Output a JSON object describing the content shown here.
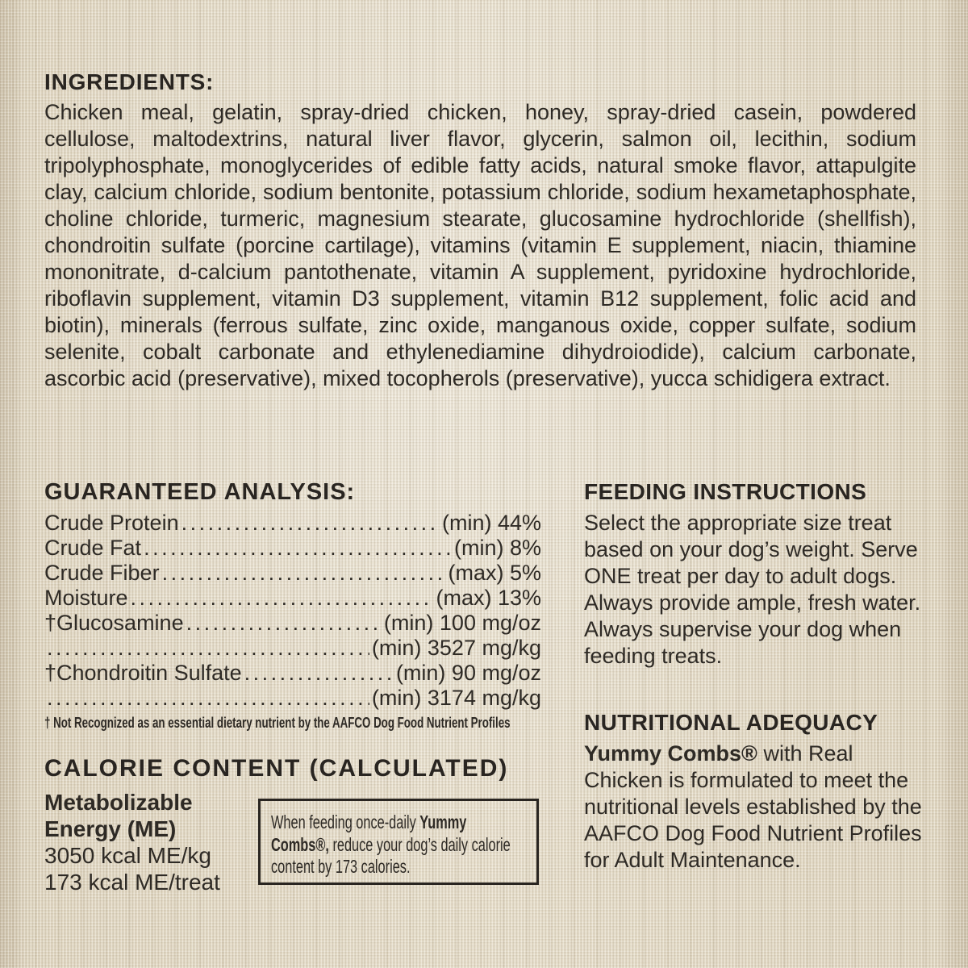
{
  "colors": {
    "background": "#e4dbc7",
    "text": "#2e2a25",
    "box_border": "#292521"
  },
  "ingredients": {
    "heading": "INGREDIENTS:",
    "text": "Chicken meal, gelatin, spray-dried chicken, honey, spray-dried casein, powdered cellulose, maltodextrins, natural liver flavor, glycerin, salmon oil, lecithin, sodium tripolyphosphate, monoglycerides of edible fatty acids, natural smoke flavor, attapulgite clay, calcium chloride, sodium bentonite, potassium chloride, sodium hexametaphosphate, choline chloride, turmeric, magnesium stearate, glucosamine hydrochloride (shellfish), chondroitin sulfate (porcine cartilage), vitamins (vitamin E supplement, niacin, thiamine mononitrate, d-calcium pantothenate, vitamin A supplement, pyridoxine hydrochloride, riboflavin supplement, vitamin D3 supplement, vitamin B12 supplement, folic acid and biotin), minerals (ferrous sulfate, zinc oxide, manganous oxide, copper sulfate, sodium selenite, cobalt carbonate and ethylenediamine dihydroiodide), calcium carbonate, ascorbic acid (preservative), mixed tocopherols (preservative), yucca schidigera extract."
  },
  "guaranteed_analysis": {
    "heading": "GUARANTEED ANALYSIS:",
    "rows": [
      {
        "label": "Crude Protein",
        "value": "(min) 44%"
      },
      {
        "label": "Crude Fat",
        "value": "(min) 8%"
      },
      {
        "label": "Crude Fiber",
        "value": "(max) 5%"
      },
      {
        "label": "Moisture",
        "value": "(max) 13%"
      },
      {
        "label": "†Glucosamine",
        "value": "(min) 100 mg/oz"
      },
      {
        "label": "",
        "value": "(min) 3527 mg/kg"
      },
      {
        "label": "†Chondroitin Sulfate",
        "value": "(min) 90 mg/oz"
      },
      {
        "label": "",
        "value": "(min) 3174 mg/kg"
      }
    ],
    "footnote": "† Not Recognized as an essential dietary nutrient by the AAFCO Dog Food Nutrient Profiles"
  },
  "calorie_content": {
    "heading": "CALORIE CONTENT (CALCULATED)",
    "me_label": "Metabolizable Energy (ME)",
    "kcal_per_kg": "3050 kcal ME/kg",
    "kcal_per_treat": "173 kcal ME/treat",
    "note_before": "When feeding once-daily ",
    "note_brand": "Yummy Combs®,",
    "note_after": " reduce your dog’s daily calorie content by 173 calories."
  },
  "feeding_instructions": {
    "heading": "FEEDING INSTRUCTIONS",
    "text": "Select the appropriate size treat based on your dog’s weight. Serve ONE treat per day to adult dogs. Always provide ample, fresh water. Always supervise your dog when feeding treats."
  },
  "nutritional_adequacy": {
    "heading": "NUTRITIONAL ADEQUACY",
    "brand": "Yummy Combs®",
    "text": " with Real Chicken is formulated to meet the nutritional levels established by the AAFCO Dog Food Nutrient Profiles for Adult Maintenance."
  }
}
